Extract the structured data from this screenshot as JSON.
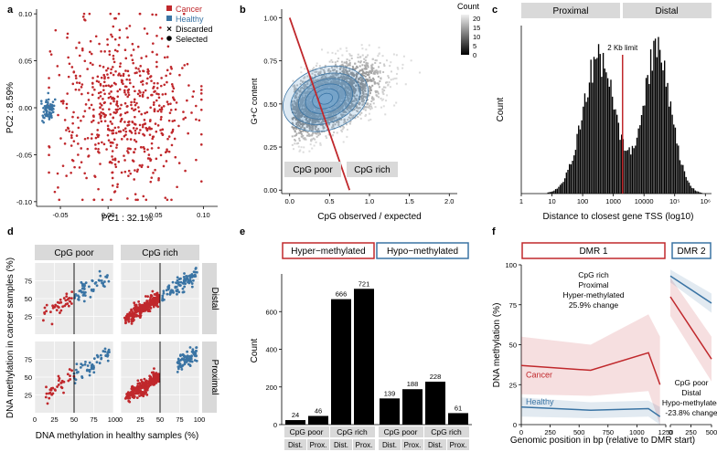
{
  "colors": {
    "cancer": "#c0282c",
    "healthy": "#3a74a4",
    "strip": "#d9d9d9",
    "grid": "#ebebeb",
    "black": "#000000"
  },
  "panel_labels": [
    "a",
    "b",
    "c",
    "d",
    "e",
    "f"
  ],
  "chart_data": [
    {
      "id": "a",
      "type": "scatter",
      "xlabel": "PC1 : 32.1%",
      "ylabel": "PC2 : 8.59%",
      "xlim": [
        -0.075,
        0.115
      ],
      "ylim": [
        -0.105,
        0.105
      ],
      "xticks": [
        -0.05,
        0.0,
        0.05,
        0.1
      ],
      "xtick_labels": [
        "-0.05",
        "0.00",
        "0.05",
        "0.10"
      ],
      "yticks": [
        -0.1,
        -0.05,
        0.0,
        0.05,
        0.1
      ],
      "ytick_labels": [
        "-0.10",
        "-0.05",
        "0.00",
        "0.05",
        "0.10"
      ],
      "legend": {
        "position": "top-right",
        "entries": [
          {
            "label": "Cancer",
            "marker": "square",
            "color": "cancer"
          },
          {
            "label": "Healthy",
            "marker": "square",
            "color": "healthy"
          },
          {
            "label": "Discarded",
            "marker": "cross",
            "color": "black"
          },
          {
            "label": "Selected",
            "marker": "dot",
            "color": "black"
          }
        ]
      },
      "series": [
        {
          "name": "Cancer",
          "center": [
            0.015,
            0.0
          ],
          "spread": [
            0.035,
            0.045
          ],
          "n": 620
        },
        {
          "name": "Healthy",
          "center": [
            -0.063,
            -0.002
          ],
          "spread": [
            0.004,
            0.006
          ],
          "n": 70
        }
      ]
    },
    {
      "id": "b",
      "type": "heatmap",
      "xlabel": "CpG observed / expected",
      "ylabel": "G+C content",
      "xlim": [
        -0.1,
        2.1
      ],
      "ylim": [
        -0.02,
        1.05
      ],
      "xticks": [
        0.0,
        0.5,
        1.0,
        1.5,
        2.0
      ],
      "xtick_labels": [
        "0.0",
        "0.5",
        "1.0",
        "1.5",
        "2.0"
      ],
      "yticks": [
        0.0,
        0.25,
        0.5,
        0.75,
        1.0
      ],
      "ytick_labels": [
        "0.00",
        "0.25",
        "0.50",
        "0.75",
        "1.00"
      ],
      "colorbar": {
        "title": "Count",
        "ticks": [
          0,
          5,
          10,
          15,
          20
        ],
        "tick_labels": [
          "0",
          "5",
          "10",
          "15",
          "20"
        ]
      },
      "divider_line": {
        "x": [
          0.0,
          0.75
        ],
        "y": [
          1.0,
          0.0
        ]
      },
      "regions": [
        "CpG poor",
        "CpG rich"
      ],
      "density_center": [
        0.45,
        0.53
      ]
    },
    {
      "id": "c",
      "type": "bar",
      "xlabel": "Distance to closest gene TSS (log10)",
      "ylabel": "Count",
      "xscale": "log",
      "xlim_log10": [
        0,
        6.2
      ],
      "xtick_labels": [
        "1",
        "10",
        "100",
        "1000",
        "10000",
        "10⁵",
        "10⁶"
      ],
      "strips": [
        "Proximal",
        "Distal"
      ],
      "vline": {
        "value_bp": 2000,
        "label": "2 Kb limit"
      },
      "histogram_modes_log10": [
        2.5,
        4.4
      ]
    },
    {
      "id": "d",
      "type": "scatter",
      "xlabel": "DNA methylation in healthy samples (%)",
      "ylabel": "DNA methylation in cancer samples (%)",
      "xlim": [
        0,
        100
      ],
      "ylim": [
        0,
        100
      ],
      "xticks": [
        0,
        25,
        50,
        75,
        100
      ],
      "xtick_labels": [
        "0",
        "25",
        "50",
        "75",
        "100"
      ],
      "yticks": [
        25,
        50,
        75
      ],
      "ytick_labels": [
        "25",
        "50",
        "75"
      ],
      "col_strips": [
        "CpG poor",
        "CpG rich"
      ],
      "row_strips": [
        "Distal",
        "Proximal"
      ],
      "vline_x": 50
    },
    {
      "id": "e",
      "type": "bar",
      "ylabel": "Count",
      "ylim": [
        0,
        800
      ],
      "yticks": [
        0,
        200,
        400,
        600
      ],
      "ytick_labels": [
        "0",
        "200",
        "400",
        "600"
      ],
      "groups": [
        {
          "name": "Hyper−methylated",
          "color": "cancer",
          "bars": [
            {
              "cpg": "CpG poor",
              "loc": "Dist.",
              "value": 24
            },
            {
              "cpg": "CpG poor",
              "loc": "Prox.",
              "value": 46
            },
            {
              "cpg": "CpG rich",
              "loc": "Dist.",
              "value": 666
            },
            {
              "cpg": "CpG rich",
              "loc": "Prox.",
              "value": 721
            }
          ]
        },
        {
          "name": "Hypo−methylated",
          "color": "healthy",
          "bars": [
            {
              "cpg": "CpG poor",
              "loc": "Dist.",
              "value": 139
            },
            {
              "cpg": "CpG poor",
              "loc": "Prox.",
              "value": 188
            },
            {
              "cpg": "CpG rich",
              "loc": "Dist.",
              "value": 228
            },
            {
              "cpg": "CpG rich",
              "loc": "Prox.",
              "value": 61
            }
          ]
        }
      ],
      "cpg_labels": [
        "CpG poor",
        "CpG rich"
      ],
      "loc_labels": [
        "Dist.",
        "Prox."
      ]
    },
    {
      "id": "f",
      "type": "line",
      "xlabel": "Genomic position in bp (relative to DMR start)",
      "ylabel": "DNA methylation (%)",
      "ylim": [
        0,
        100
      ],
      "yticks": [
        0,
        25,
        50,
        75,
        100
      ],
      "ytick_labels": [
        "0",
        "25",
        "50",
        "75",
        "100"
      ],
      "panels": [
        {
          "title": "DMR 1",
          "title_color": "cancer",
          "annotation": [
            "CpG rich",
            "Proximal",
            "Hyper-methylated",
            "25.9% change"
          ],
          "xlim": [
            0,
            1250
          ],
          "xticks": [
            0,
            250,
            500,
            750,
            1000,
            1250
          ],
          "xtick_labels": [
            "0",
            "250",
            "500",
            "750",
            "1000",
            "1250"
          ],
          "series": [
            {
              "name": "Cancer",
              "x": [
                0,
                600,
                1100,
                1200
              ],
              "y": [
                37,
                34,
                45,
                25
              ],
              "band": [
                18,
                16,
                24,
                30
              ]
            },
            {
              "name": "Healthy",
              "x": [
                0,
                600,
                1100,
                1200
              ],
              "y": [
                11,
                9,
                10,
                5
              ],
              "band": [
                6,
                5,
                5,
                6
              ]
            }
          ]
        },
        {
          "title": "DMR 2",
          "title_color": "healthy",
          "annotation": [
            "CpG poor",
            "Distal",
            "Hypo-methylated",
            "-23.8% change"
          ],
          "xlim": [
            0,
            500
          ],
          "xticks": [
            0,
            250,
            500
          ],
          "xtick_labels": [
            "0",
            "250",
            "500"
          ],
          "series": [
            {
              "name": "Cancer",
              "x": [
                0,
                500
              ],
              "y": [
                80,
                41
              ],
              "band": [
                12,
                14
              ]
            },
            {
              "name": "Healthy",
              "x": [
                0,
                500
              ],
              "y": [
                93,
                76
              ],
              "band": [
                4,
                6
              ]
            }
          ]
        }
      ]
    }
  ]
}
